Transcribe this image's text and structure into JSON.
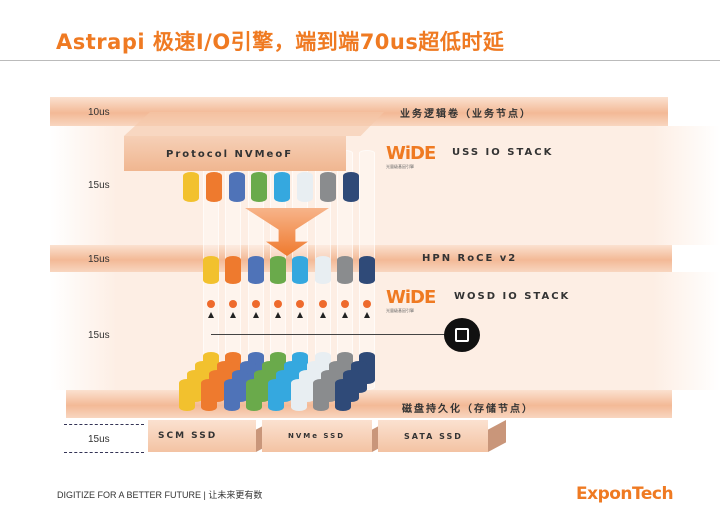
{
  "title": "Astrapi 极速I/O引擎，端到端70us超低时延",
  "layers": {
    "app": {
      "latency": "10us",
      "label": "业务逻辑卷（业务节点）"
    },
    "uss": {
      "latency": "15us",
      "protocol": "Protocol NVMeoF",
      "logo": "WiDE",
      "logo_sub": "光量级基因引擎",
      "label": "USS  IO STACK"
    },
    "network": {
      "latency": "15us",
      "label": "HPN  RoCE v2"
    },
    "wosd": {
      "latency": "15us",
      "logo": "WiDE",
      "logo_sub": "光量级基因引擎",
      "label": "WOSD  IO STACK"
    },
    "disk": {
      "label": "磁盘持久化（存储节点）"
    },
    "media": {
      "latency": "15us",
      "ssds": [
        "SCM SSD",
        "NVMe SSD",
        "SATA SSD"
      ]
    }
  },
  "colors": {
    "accent": "#ef7a22",
    "lanes": [
      "#f2c12e",
      "#ee7a2e",
      "#4f73b8",
      "#6aaa4b",
      "#35a8df",
      "#e8eef2",
      "#8a8c8e",
      "#2f4a78"
    ]
  },
  "footer": {
    "slogan": "DIGITIZE FOR A BETTER FUTURE | 让未来更有数",
    "brand": "ExponTech"
  }
}
